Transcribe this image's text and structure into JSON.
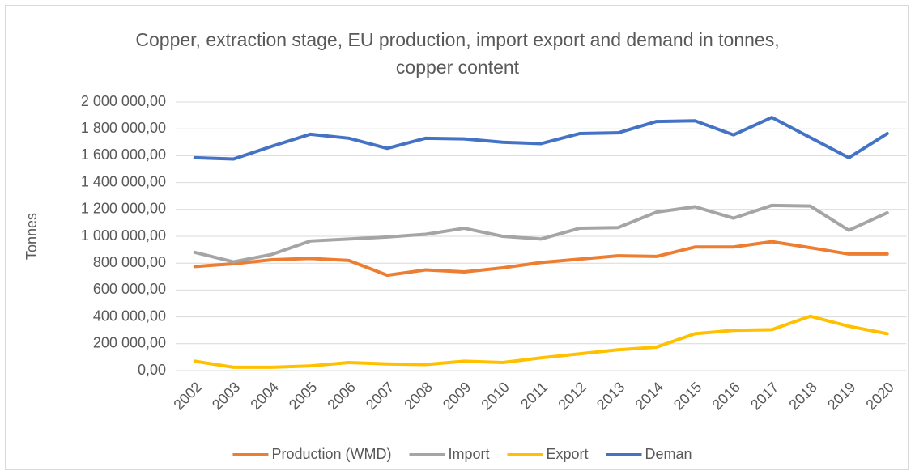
{
  "chart_data": {
    "type": "line",
    "title": "Copper, extraction stage, EU production, import export and demand in tonnes, copper content",
    "y_label": "Tonnes",
    "categories": [
      "2002",
      "2003",
      "2004",
      "2005",
      "2006",
      "2007",
      "2008",
      "2009",
      "2010",
      "2011",
      "2012",
      "2013",
      "2014",
      "2015",
      "2016",
      "2017",
      "2018",
      "2019",
      "2020"
    ],
    "series": [
      {
        "name": "Production (WMD)",
        "color": "#ed7d31",
        "values": [
          775000,
          795000,
          825000,
          835000,
          820000,
          710000,
          750000,
          735000,
          765000,
          805000,
          830000,
          855000,
          850000,
          920000,
          920000,
          960000,
          915000,
          868000,
          868000
        ]
      },
      {
        "name": "Import",
        "color": "#a5a5a5",
        "values": [
          880000,
          810000,
          865000,
          965000,
          980000,
          995000,
          1015000,
          1060000,
          1000000,
          980000,
          1060000,
          1065000,
          1180000,
          1220000,
          1135000,
          1230000,
          1225000,
          1045000,
          1175000
        ]
      },
      {
        "name": "Export",
        "color": "#ffc000",
        "values": [
          70000,
          25000,
          25000,
          35000,
          60000,
          50000,
          45000,
          70000,
          60000,
          95000,
          125000,
          155000,
          175000,
          275000,
          300000,
          305000,
          405000,
          330000,
          275000
        ]
      },
      {
        "name": "Deman",
        "color": "#4472c4",
        "values": [
          1585000,
          1575000,
          1670000,
          1760000,
          1730000,
          1655000,
          1730000,
          1725000,
          1700000,
          1690000,
          1765000,
          1770000,
          1855000,
          1860000,
          1755000,
          1885000,
          1735000,
          1585000,
          1765000
        ]
      }
    ],
    "ylim": [
      0,
      2000000
    ],
    "yticks": [
      {
        "value": 0,
        "label": "0,00"
      },
      {
        "value": 200000,
        "label": "200 000,00"
      },
      {
        "value": 400000,
        "label": "400 000,00"
      },
      {
        "value": 600000,
        "label": "600 000,00"
      },
      {
        "value": 800000,
        "label": "800 000,00"
      },
      {
        "value": 1000000,
        "label": "1 000 000,00"
      },
      {
        "value": 1200000,
        "label": "1 200 000,00"
      },
      {
        "value": 1400000,
        "label": "1 400 000,00"
      },
      {
        "value": 1600000,
        "label": "1 600 000,00"
      },
      {
        "value": 1800000,
        "label": "1 800 000,00"
      },
      {
        "value": 2000000,
        "label": "2 000 000,00"
      }
    ],
    "grid": true,
    "legend": "bottom"
  }
}
